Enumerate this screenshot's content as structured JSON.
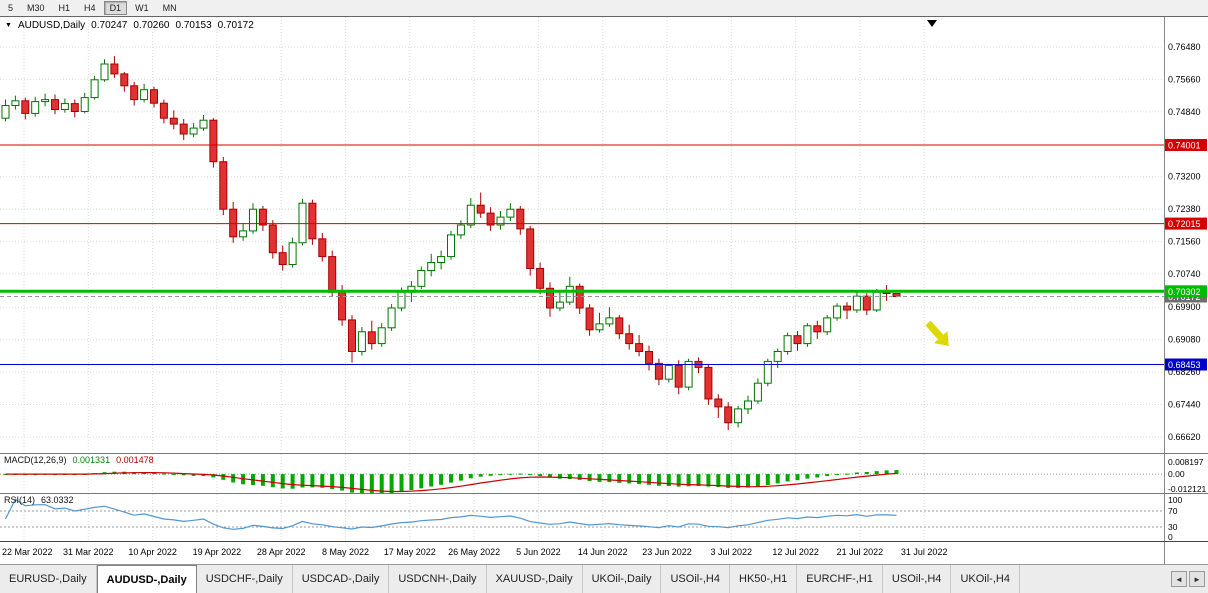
{
  "toolbar": {
    "timeframes": [
      {
        "label": "5",
        "active": false
      },
      {
        "label": "M30",
        "active": false
      },
      {
        "label": "H1",
        "active": false
      },
      {
        "label": "H4",
        "active": false
      },
      {
        "label": "D1",
        "active": true
      },
      {
        "label": "W1",
        "active": false
      },
      {
        "label": "MN",
        "active": false
      }
    ]
  },
  "header": {
    "dropdown_icon": "▼",
    "symbol": "AUDUSD,Daily",
    "open": "0.70247",
    "high": "0.70260",
    "low": "0.70153",
    "close": "0.70172"
  },
  "icons": {
    "shift_marker": "▼",
    "scroll_left": "◄",
    "scroll_right": "►"
  },
  "price_scale": {
    "ticks": [
      "0.76480",
      "0.75660",
      "0.74840",
      "0.73200",
      "0.72380",
      "0.71560",
      "0.70740",
      "0.69900",
      "0.69080",
      "0.68260",
      "0.67440",
      "0.66620"
    ]
  },
  "hlines": [
    {
      "price": 0.74001,
      "color": "#d40000",
      "width": 1
    },
    {
      "price": 0.72015,
      "color": "#d40000",
      "width": 1
    },
    {
      "price": 0.70302,
      "color": "#00bb00",
      "width": 3
    },
    {
      "price": 0.68453,
      "color": "#0000cc",
      "width": 1
    }
  ],
  "current_price": {
    "price": 0.70172,
    "label": "0.70172",
    "color": "#6e6e6e"
  },
  "chart_data": {
    "type": "candlestick",
    "symbol": "AUDUSD",
    "period": "Daily",
    "title": "AUDUSD,Daily",
    "y_range": [
      0.6662,
      0.7648
    ],
    "x_labels": [
      "22 Mar 2022",
      "31 Mar 2022",
      "10 Apr 2022",
      "19 Apr 2022",
      "28 Apr 2022",
      "8 May 2022",
      "17 May 2022",
      "26 May 2022",
      "5 Jun 2022",
      "14 Jun 2022",
      "23 Jun 2022",
      "3 Jul 2022",
      "12 Jul 2022",
      "21 Jul 2022",
      "31 Jul 2022"
    ],
    "candles": [
      [
        0.7468,
        0.7515,
        0.746,
        0.75
      ],
      [
        0.75,
        0.7525,
        0.749,
        0.7512
      ],
      [
        0.7512,
        0.752,
        0.7465,
        0.748
      ],
      [
        0.748,
        0.7522,
        0.7472,
        0.751
      ],
      [
        0.751,
        0.753,
        0.7498,
        0.7515
      ],
      [
        0.7515,
        0.7528,
        0.7478,
        0.749
      ],
      [
        0.749,
        0.7518,
        0.7482,
        0.7505
      ],
      [
        0.7505,
        0.7515,
        0.747,
        0.7485
      ],
      [
        0.7485,
        0.7532,
        0.748,
        0.752
      ],
      [
        0.752,
        0.7575,
        0.7515,
        0.7565
      ],
      [
        0.7565,
        0.7617,
        0.756,
        0.7605
      ],
      [
        0.7605,
        0.7625,
        0.757,
        0.758
      ],
      [
        0.758,
        0.7585,
        0.7535,
        0.755
      ],
      [
        0.755,
        0.756,
        0.75,
        0.7515
      ],
      [
        0.7515,
        0.7555,
        0.7508,
        0.754
      ],
      [
        0.754,
        0.7548,
        0.7495,
        0.7506
      ],
      [
        0.7506,
        0.7515,
        0.7455,
        0.7468
      ],
      [
        0.7468,
        0.7488,
        0.744,
        0.7453
      ],
      [
        0.7453,
        0.7466,
        0.7413,
        0.7428
      ],
      [
        0.7428,
        0.7456,
        0.742,
        0.7443
      ],
      [
        0.7443,
        0.7476,
        0.7436,
        0.7463
      ],
      [
        0.7463,
        0.7468,
        0.7343,
        0.7358
      ],
      [
        0.7358,
        0.737,
        0.7223,
        0.7238
      ],
      [
        0.7238,
        0.7256,
        0.7153,
        0.7168
      ],
      [
        0.7168,
        0.7203,
        0.7158,
        0.7183
      ],
      [
        0.7183,
        0.7253,
        0.7176,
        0.7238
      ],
      [
        0.7238,
        0.7246,
        0.7183,
        0.7198
      ],
      [
        0.7198,
        0.721,
        0.7113,
        0.7128
      ],
      [
        0.7128,
        0.7146,
        0.7083,
        0.7098
      ],
      [
        0.7098,
        0.7166,
        0.709,
        0.7153
      ],
      [
        0.7153,
        0.7264,
        0.7146,
        0.7253
      ],
      [
        0.7253,
        0.7262,
        0.7148,
        0.7163
      ],
      [
        0.7163,
        0.7178,
        0.7106,
        0.7118
      ],
      [
        0.7118,
        0.7133,
        0.7016,
        0.7028
      ],
      [
        0.7028,
        0.7046,
        0.6943,
        0.6958
      ],
      [
        0.6958,
        0.697,
        0.685,
        0.6878
      ],
      [
        0.6878,
        0.694,
        0.6868,
        0.6928
      ],
      [
        0.6928,
        0.6956,
        0.6883,
        0.6898
      ],
      [
        0.6898,
        0.695,
        0.689,
        0.6938
      ],
      [
        0.6938,
        0.6998,
        0.693,
        0.6988
      ],
      [
        0.6988,
        0.704,
        0.698,
        0.7028
      ],
      [
        0.7028,
        0.7056,
        0.7003,
        0.7043
      ],
      [
        0.7043,
        0.7093,
        0.7036,
        0.7083
      ],
      [
        0.7083,
        0.7125,
        0.7068,
        0.7103
      ],
      [
        0.7103,
        0.7133,
        0.7086,
        0.7118
      ],
      [
        0.7118,
        0.7183,
        0.711,
        0.7173
      ],
      [
        0.7173,
        0.721,
        0.7163,
        0.7198
      ],
      [
        0.7198,
        0.7266,
        0.719,
        0.7248
      ],
      [
        0.7248,
        0.728,
        0.7216,
        0.7228
      ],
      [
        0.7228,
        0.7243,
        0.7183,
        0.7198
      ],
      [
        0.7198,
        0.7233,
        0.7186,
        0.7218
      ],
      [
        0.7218,
        0.7253,
        0.7208,
        0.7238
      ],
      [
        0.7238,
        0.7246,
        0.7173,
        0.7188
      ],
      [
        0.7188,
        0.7196,
        0.707,
        0.7088
      ],
      [
        0.7088,
        0.7103,
        0.7023,
        0.7038
      ],
      [
        0.7038,
        0.7053,
        0.6966,
        0.6988
      ],
      [
        0.6988,
        0.7033,
        0.698,
        0.7003
      ],
      [
        0.7003,
        0.7067,
        0.6996,
        0.7043
      ],
      [
        0.7043,
        0.705,
        0.6973,
        0.6988
      ],
      [
        0.6988,
        0.6998,
        0.6918,
        0.6933
      ],
      [
        0.6933,
        0.6976,
        0.6926,
        0.6948
      ],
      [
        0.6948,
        0.699,
        0.694,
        0.6963
      ],
      [
        0.6963,
        0.697,
        0.691,
        0.6923
      ],
      [
        0.6923,
        0.6946,
        0.6883,
        0.6898
      ],
      [
        0.6898,
        0.692,
        0.6866,
        0.6878
      ],
      [
        0.6878,
        0.6893,
        0.683,
        0.6848
      ],
      [
        0.6848,
        0.686,
        0.6793,
        0.6808
      ],
      [
        0.6808,
        0.6846,
        0.68,
        0.6843
      ],
      [
        0.6843,
        0.6856,
        0.677,
        0.6788
      ],
      [
        0.6788,
        0.686,
        0.678,
        0.6853
      ],
      [
        0.6853,
        0.6863,
        0.6823,
        0.6838
      ],
      [
        0.6838,
        0.6846,
        0.6743,
        0.6758
      ],
      [
        0.6758,
        0.677,
        0.671,
        0.6738
      ],
      [
        0.6738,
        0.675,
        0.6679,
        0.6698
      ],
      [
        0.6698,
        0.674,
        0.6686,
        0.6733
      ],
      [
        0.6733,
        0.6766,
        0.672,
        0.6753
      ],
      [
        0.6753,
        0.681,
        0.6746,
        0.6798
      ],
      [
        0.6798,
        0.686,
        0.679,
        0.6853
      ],
      [
        0.6853,
        0.6886,
        0.6836,
        0.6878
      ],
      [
        0.6878,
        0.6926,
        0.687,
        0.6918
      ],
      [
        0.6918,
        0.693,
        0.688,
        0.6898
      ],
      [
        0.6898,
        0.695,
        0.689,
        0.6943
      ],
      [
        0.6943,
        0.6956,
        0.691,
        0.6928
      ],
      [
        0.6928,
        0.697,
        0.692,
        0.6963
      ],
      [
        0.6963,
        0.7,
        0.6956,
        0.6993
      ],
      [
        0.6993,
        0.7003,
        0.696,
        0.6983
      ],
      [
        0.6983,
        0.703,
        0.6976,
        0.7018
      ],
      [
        0.7018,
        0.7026,
        0.697,
        0.6983
      ],
      [
        0.6983,
        0.7036,
        0.6978,
        0.7028
      ],
      [
        0.7028,
        0.7046,
        0.7006,
        0.70247
      ],
      [
        0.70247,
        0.7026,
        0.70153,
        0.70172
      ]
    ],
    "indicators": [
      {
        "name": "MACD",
        "display": "MACD(12,26,9)",
        "params": "12,26,9",
        "values": [
          "0.001331",
          "0.001478"
        ],
        "scale_labels": [
          "0.008197",
          "0.00",
          "-0.012121"
        ],
        "histogram_color": "#00a800",
        "signal_color": "#cc0000"
      },
      {
        "name": "RSI",
        "display": "RSI(14)",
        "params": "14",
        "values": [
          "63.0332"
        ],
        "scale_labels": [
          "100",
          "70",
          "30",
          "0"
        ],
        "levels": [
          70,
          30
        ],
        "line_color": "#5296d0"
      }
    ],
    "annotations": [
      {
        "type": "arrow",
        "direction": "down-right",
        "color": "#dcd800"
      }
    ]
  },
  "tabs": {
    "items": [
      {
        "label": "EURUSD-,Daily",
        "active": false
      },
      {
        "label": "AUDUSD-,Daily",
        "active": true
      },
      {
        "label": "USDCHF-,Daily",
        "active": false
      },
      {
        "label": "USDCAD-,Daily",
        "active": false
      },
      {
        "label": "USDCNH-,Daily",
        "active": false
      },
      {
        "label": "XAUUSD-,Daily",
        "active": false
      },
      {
        "label": "UKOil-,Daily",
        "active": false
      },
      {
        "label": "USOil-,H4",
        "active": false
      },
      {
        "label": "HK50-,H1",
        "active": false
      },
      {
        "label": "EURCHF-,H1",
        "active": false
      },
      {
        "label": "USOil-,H4",
        "active": false
      },
      {
        "label": "UKOil-,H4",
        "active": false
      }
    ]
  },
  "colors": {
    "bull_fill": "#ffffff",
    "bull_border": "#007500",
    "bear_fill": "#e03232",
    "bear_border": "#a80000",
    "grid": "#dcdcdc",
    "toolbar_bg": "#f0f0f0",
    "scale_text": "#000000"
  }
}
